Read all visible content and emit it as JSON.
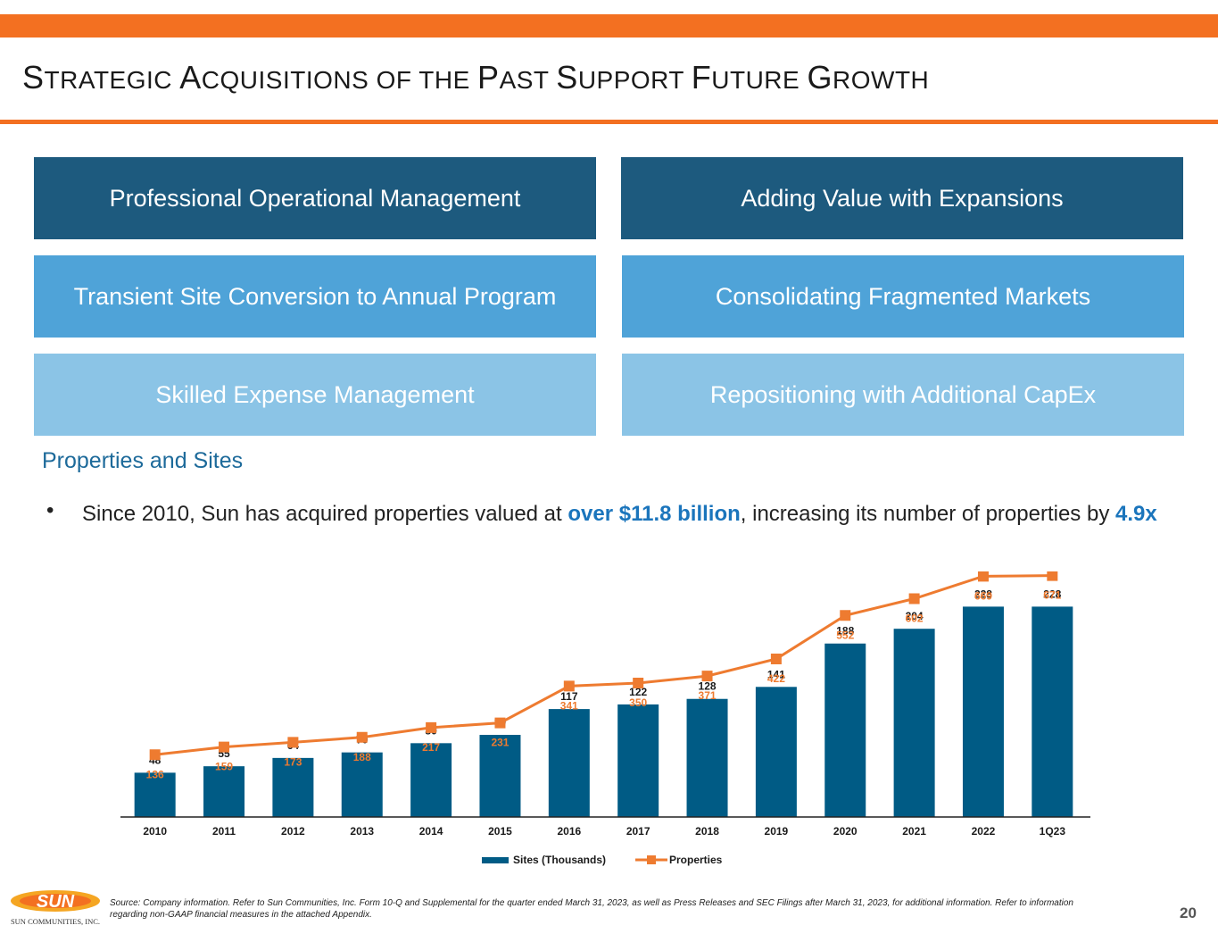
{
  "header": {
    "title_words": [
      {
        "initial": "S",
        "rest": "TRATEGIC"
      },
      {
        "initial": "A",
        "rest": "CQUISITIONS"
      },
      {
        "initial": "",
        "rest": "OF"
      },
      {
        "initial": "",
        "rest": "THE"
      },
      {
        "initial": "P",
        "rest": "AST"
      },
      {
        "initial": "S",
        "rest": "UPPORT"
      },
      {
        "initial": "F",
        "rest": "UTURE"
      },
      {
        "initial": "G",
        "rest": "ROWTH"
      }
    ],
    "accent_color": "#F37021"
  },
  "boxes": [
    {
      "label": "Professional Operational Management",
      "tone": "dark"
    },
    {
      "label": "Adding Value with Expansions",
      "tone": "dark"
    },
    {
      "label": "Transient Site Conversion to Annual Program",
      "tone": "mid"
    },
    {
      "label": "Consolidating Fragmented Markets",
      "tone": "mid"
    },
    {
      "label": "Skilled Expense Management",
      "tone": "light"
    },
    {
      "label": "Repositioning with Additional CapEx",
      "tone": "light"
    }
  ],
  "section": {
    "subhead": "Properties and Sites",
    "bullet_symbol": "•",
    "bullet": {
      "part1": "Since 2010, Sun has acquired properties valued at ",
      "highlight1": "over $11.8 billion",
      "part2": ", increasing its number of properties by ",
      "highlight2": "4.9x"
    }
  },
  "chart_data": {
    "type": "bar",
    "categories": [
      "2010",
      "2011",
      "2012",
      "2013",
      "2014",
      "2015",
      "2016",
      "2017",
      "2018",
      "2019",
      "2020",
      "2021",
      "2022",
      "1Q23"
    ],
    "series": [
      {
        "name": "Sites (Thousands)",
        "type": "bar",
        "color": "#005B85",
        "values": [
          48,
          55,
          64,
          70,
          80,
          89,
          117,
          122,
          128,
          141,
          188,
          204,
          228,
          228
        ]
      },
      {
        "name": "Properties",
        "type": "line",
        "color": "#EE7B30",
        "values": [
          136,
          159,
          173,
          188,
          217,
          231,
          341,
          350,
          371,
          422,
          552,
          602,
          669,
          671
        ]
      }
    ],
    "title": "",
    "legend": "bottom",
    "bar_ylim": [
      0,
      240
    ],
    "line_ylim": [
      -50,
      750
    ]
  },
  "footer": {
    "source": "Source: Company information. Refer to Sun Communities, Inc. Form 10-Q and Supplemental for the quarter ended March 31, 2023, as well as Press Releases and SEC Filings after March 31, 2023, for additional information.  Refer to information regarding non-GAAP financial measures in the attached Appendix.",
    "page_number": "20",
    "logo_text": "SUN",
    "logo_caption": "SUN COMMUNITIES, INC."
  }
}
